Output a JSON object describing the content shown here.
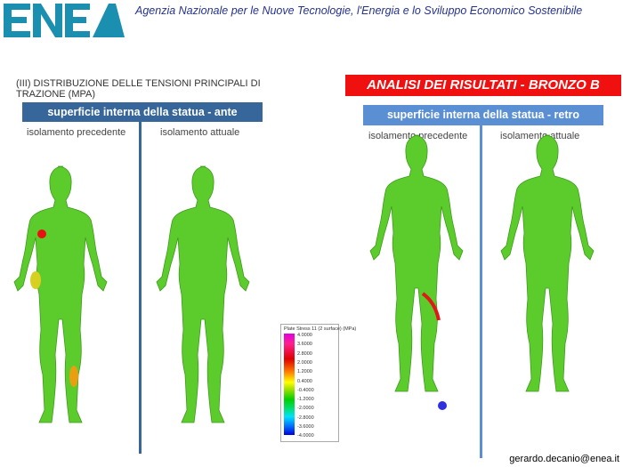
{
  "header": {
    "logo_text": "ENEA",
    "agency": "Agenzia Nazionale per le Nuove Tecnologie, l'Energia e lo Sviluppo Economico Sostenibile"
  },
  "left": {
    "title": "(III) DISTRIBUZIONE DELLE TENSIONI PRINCIPALI DI TRAZIONE (MPA)",
    "bar": "superficie interna della statua - ante",
    "col1": "isolamento precedente",
    "col2": "isolamento attuale"
  },
  "right": {
    "title": "ANALISI DEI RISULTATI - BRONZO B",
    "bar": "superficie interna della statua - retro",
    "col1": "isolamento precedente",
    "col2": "isolamento attuale"
  },
  "legend": {
    "title": "Plate Stress 11 (2 surface) (MPa)",
    "labels": [
      "4.0000",
      "3.6000",
      "2.8000",
      "2.0000",
      "1.2000",
      "0.4000",
      "-0.4000",
      "-1.2000",
      "-2.0000",
      "-2.8000",
      "-3.6000",
      "-4.0000"
    ]
  },
  "colors": {
    "brand": "#1a8fb0",
    "red_banner": "#f01010",
    "bar_left": "#36669a",
    "bar_right": "#5b8fd4",
    "statue_green": "#5ccc2c"
  },
  "footer": {
    "email": "gerardo.decanio@enea.it"
  }
}
